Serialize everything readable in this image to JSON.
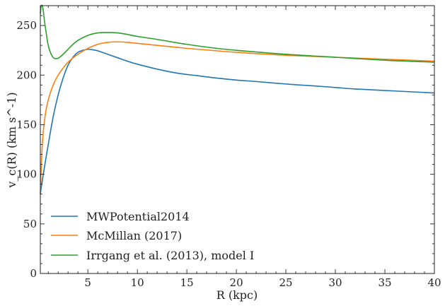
{
  "chart_data": {
    "type": "line",
    "title": "",
    "xlabel": "R (kpc)",
    "ylabel": "v_c(R) (km s^-1)",
    "xlim": [
      0.2,
      40
    ],
    "ylim": [
      0,
      270
    ],
    "xticks": [
      5,
      10,
      15,
      20,
      25,
      30,
      35,
      40
    ],
    "yticks": [
      0,
      50,
      100,
      150,
      200,
      250
    ],
    "legend_position": "lower-left",
    "series": [
      {
        "name": "MWPotential2014",
        "color": "#1f77b4",
        "x": [
          0.2,
          0.5,
          1,
          1.5,
          2,
          2.5,
          3,
          3.5,
          4,
          4.5,
          5,
          5.5,
          6,
          7,
          8,
          9,
          10,
          12,
          14,
          16,
          18,
          20,
          22,
          25,
          28,
          30,
          32,
          35,
          38,
          40
        ],
        "y": [
          80,
          100,
          130,
          158,
          180,
          197,
          210,
          218,
          223,
          225,
          226,
          225.5,
          224.5,
          221,
          217.5,
          214,
          211,
          206,
          202,
          199.5,
          197,
          195,
          193.5,
          191,
          189,
          187.5,
          186,
          184.5,
          183,
          182
        ]
      },
      {
        "name": "McMillan (2017)",
        "color": "#ff7f0e",
        "x": [
          0.2,
          0.4,
          0.7,
          1,
          1.5,
          2,
          2.5,
          3,
          4,
          5,
          6,
          7,
          8,
          9,
          10,
          12,
          15,
          18,
          20,
          25,
          30,
          35,
          40
        ],
        "y": [
          80,
          130,
          160,
          175,
          190,
          200,
          207,
          213,
          221,
          227,
          231,
          233,
          233.5,
          233,
          232,
          230,
          227,
          224.5,
          223,
          220,
          218,
          216,
          214
        ]
      },
      {
        "name": "Irrgang et al. (2013), model I",
        "color": "#2ca02c",
        "x": [
          0.2,
          0.3,
          0.45,
          0.6,
          0.8,
          1,
          1.3,
          1.6,
          2,
          2.5,
          3,
          3.5,
          4,
          5,
          6,
          7,
          8,
          9,
          10,
          12,
          15,
          18,
          20,
          25,
          30,
          35,
          40
        ],
        "y": [
          262,
          270,
          268,
          256,
          242,
          230,
          221,
          217,
          217,
          221,
          226,
          231,
          235,
          240,
          242.5,
          243,
          242.5,
          241,
          239,
          236,
          231,
          227,
          225,
          221,
          218,
          215,
          213
        ]
      }
    ]
  }
}
